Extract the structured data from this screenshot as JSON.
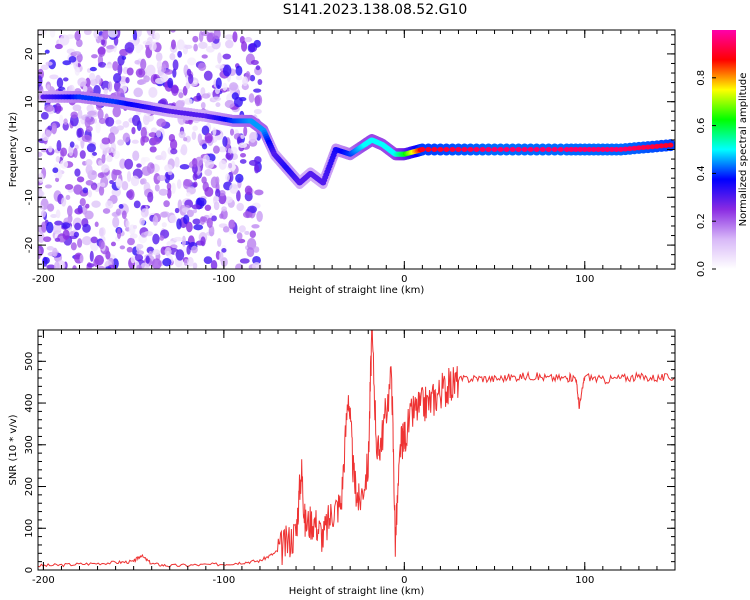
{
  "page": {
    "title": "S141.2023.138.08.52.G10"
  },
  "chart_data": [
    {
      "type": "heatmap",
      "title": "S141.2023.138.08.52.G10",
      "xlabel": "Height of straight line (km)",
      "ylabel": "Frequency (Hz)",
      "xlim": [
        -203,
        150
      ],
      "ylim": [
        -25,
        25
      ],
      "x_ticks": [
        -200,
        -100,
        0,
        100
      ],
      "y_ticks": [
        -20,
        -10,
        0,
        10,
        20
      ],
      "colorbar": {
        "label": "Normalized spectral amplitude",
        "range": [
          0.0,
          1.0
        ],
        "ticks": [
          0.0,
          0.2,
          0.4,
          0.6,
          0.8
        ],
        "colormap": [
          "#ffffff",
          "#d8b8f8",
          "#8a2be2",
          "#0000ff",
          "#00ffff",
          "#00ff00",
          "#ffff00",
          "#ff0000",
          "#ff00aa"
        ]
      },
      "ridge": {
        "x": [
          -200,
          -180,
          -160,
          -145,
          -130,
          -110,
          -95,
          -85,
          -78,
          -72,
          -65,
          -58,
          -52,
          -45,
          -38,
          -30,
          -22,
          -18,
          -12,
          -5,
          0,
          10,
          50,
          90,
          120,
          150
        ],
        "frequency": [
          11,
          11,
          10,
          9,
          8,
          7,
          6,
          6,
          4,
          -1,
          -4,
          -7,
          -5,
          -7,
          0,
          -1,
          1,
          2,
          1,
          -1,
          -1,
          0,
          0,
          0,
          0,
          1
        ],
        "amplitude": [
          0.3,
          0.4,
          0.4,
          0.35,
          0.3,
          0.3,
          0.4,
          0.45,
          0.45,
          0.3,
          0.35,
          0.3,
          0.3,
          0.3,
          0.35,
          0.4,
          0.5,
          0.5,
          0.5,
          0.5,
          0.6,
          0.9,
          0.95,
          0.95,
          0.95,
          0.9
        ]
      }
    },
    {
      "type": "line",
      "xlabel": "Height of straight line (km)",
      "ylabel": "SNR (10 * v/v)",
      "xlim": [
        -203,
        150
      ],
      "ylim": [
        0,
        575
      ],
      "x_ticks": [
        -200,
        -100,
        0,
        100
      ],
      "y_ticks": [
        0,
        100,
        200,
        300,
        400,
        500
      ],
      "color": "#ee3333",
      "x": [
        -203,
        -190,
        -175,
        -160,
        -150,
        -146,
        -140,
        -130,
        -115,
        -100,
        -90,
        -80,
        -72,
        -66,
        -60,
        -57,
        -55,
        -50,
        -45,
        -40,
        -35,
        -31,
        -28,
        -25,
        -20,
        -18,
        -15,
        -12,
        -7,
        -5,
        -2,
        0,
        5,
        10,
        15,
        20,
        25,
        30,
        40,
        50,
        60,
        70,
        80,
        90,
        95,
        97,
        100,
        110,
        120,
        130,
        140,
        150
      ],
      "y": [
        10,
        12,
        15,
        18,
        20,
        35,
        15,
        10,
        12,
        14,
        18,
        22,
        40,
        60,
        90,
        245,
        110,
        120,
        80,
        140,
        160,
        430,
        220,
        160,
        250,
        575,
        270,
        330,
        470,
        70,
        300,
        320,
        380,
        395,
        405,
        430,
        440,
        455,
        460,
        458,
        462,
        465,
        460,
        460,
        462,
        390,
        465,
        455,
        460,
        462,
        460,
        462
      ]
    }
  ]
}
